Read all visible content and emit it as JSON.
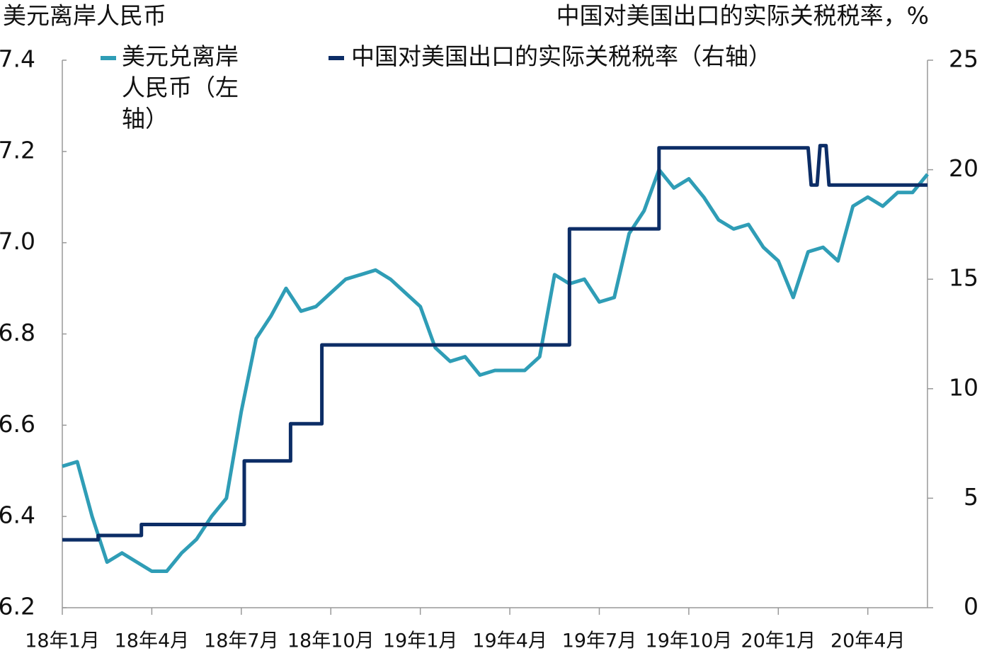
{
  "chart_data": {
    "type": "line",
    "y_label": "美元离岸人民币",
    "y2_label": "中国对美国出口的实际关税税率，%",
    "xlim": [
      0,
      29
    ],
    "xticks": [
      {
        "value": 0,
        "label": "18年1月"
      },
      {
        "value": 3,
        "label": "18年4月"
      },
      {
        "value": 6,
        "label": "18年7月"
      },
      {
        "value": 9,
        "label": "18年10月"
      },
      {
        "value": 12,
        "label": "19年1月"
      },
      {
        "value": 15,
        "label": "19年4月"
      },
      {
        "value": 18,
        "label": "19年7月"
      },
      {
        "value": 21,
        "label": "19年10月"
      },
      {
        "value": 24,
        "label": "20年1月"
      },
      {
        "value": 27,
        "label": "20年4月"
      }
    ],
    "ylim": [
      6.2,
      7.4
    ],
    "yticks": [
      6.2,
      6.4,
      6.6,
      6.8,
      {
        "value": 7,
        "label": "7.0"
      },
      7.2,
      7.4
    ],
    "y2lim": [
      0,
      25
    ],
    "y2ticks": [
      0,
      5,
      10,
      15,
      20,
      25
    ],
    "series": [
      {
        "name": "美元兑离岸人民币（左轴）",
        "color": "#2f9db6",
        "axis": "y",
        "x": [
          0,
          0.5,
          1,
          1.5,
          2,
          2.5,
          3,
          3.5,
          4,
          4.5,
          5,
          5.5,
          6,
          6.5,
          7,
          7.5,
          8,
          8.5,
          9,
          9.5,
          10,
          10.5,
          11,
          11.5,
          12,
          12.5,
          13,
          13.5,
          14,
          14.5,
          15,
          15.5,
          16,
          16.5,
          17,
          17.5,
          18,
          18.5,
          19,
          19.5,
          20,
          20.5,
          21,
          21.5,
          22,
          22.5,
          23,
          23.5,
          24,
          24.5,
          25,
          25.5,
          26,
          26.5,
          27,
          27.5,
          28,
          28.5,
          29
        ],
        "values": [
          6.51,
          6.52,
          6.4,
          6.3,
          6.32,
          6.3,
          6.28,
          6.28,
          6.32,
          6.35,
          6.4,
          6.44,
          6.63,
          6.79,
          6.84,
          6.9,
          6.85,
          6.86,
          6.89,
          6.92,
          6.93,
          6.94,
          6.92,
          6.89,
          6.86,
          6.77,
          6.74,
          6.75,
          6.71,
          6.72,
          6.72,
          6.72,
          6.75,
          6.93,
          6.91,
          6.92,
          6.87,
          6.88,
          7.02,
          7.07,
          7.16,
          7.12,
          7.14,
          7.1,
          7.05,
          7.03,
          7.04,
          6.99,
          6.96,
          6.88,
          6.98,
          6.99,
          6.96,
          7.08,
          7.1,
          7.08,
          7.11,
          7.11,
          7.15
        ]
      },
      {
        "name": "中国对美国出口的实际关税税率（右轴）",
        "color": "#0c2d66",
        "axis": "y2",
        "x": [
          0,
          1.2,
          1.2,
          2.65,
          2.65,
          6.1,
          6.1,
          7.65,
          7.65,
          8.7,
          8.7,
          17,
          17,
          20,
          20,
          25,
          25.1,
          25.3,
          25.4,
          25.6,
          25.7,
          29
        ],
        "values": [
          3.1,
          3.1,
          3.3,
          3.3,
          3.8,
          3.8,
          6.7,
          6.7,
          8.4,
          8.4,
          12,
          12,
          17.3,
          17.3,
          21,
          21,
          19.3,
          19.3,
          21.1,
          21.1,
          19.3,
          19.3
        ]
      }
    ]
  }
}
